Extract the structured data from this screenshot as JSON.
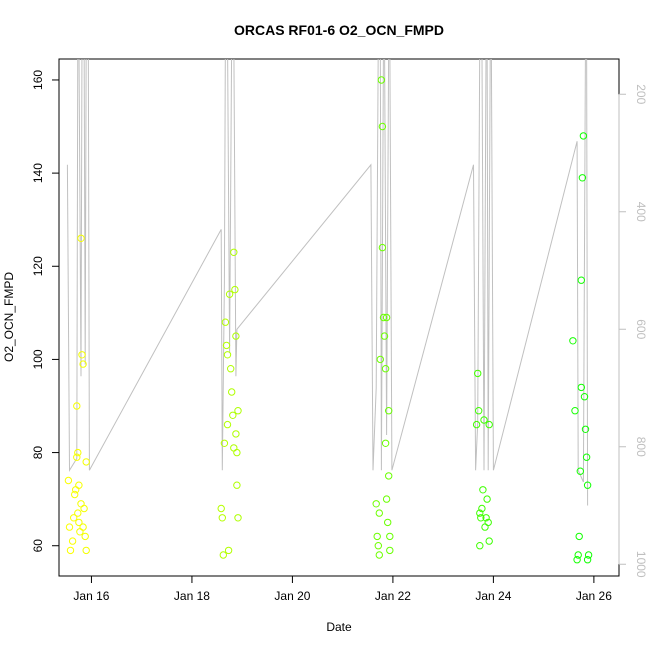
{
  "chart_data": {
    "type": "scatter",
    "title": "ORCAS RF01-6 O2_OCN_FMPD",
    "xlabel": "Date",
    "ylabel": "O2_OCN_FMPD",
    "xlim": [
      "2016-01-15T08:30",
      "2016-01-26T12:00"
    ],
    "ylim": [
      53.5,
      164.5
    ],
    "x_ticks": [
      {
        "x": "2016-01-16",
        "label": "Jan 16"
      },
      {
        "x": "2016-01-18",
        "label": "Jan 18"
      },
      {
        "x": "2016-01-20",
        "label": "Jan 20"
      },
      {
        "x": "2016-01-22",
        "label": "Jan 22"
      },
      {
        "x": "2016-01-24",
        "label": "Jan 24"
      },
      {
        "x": "2016-01-26",
        "label": "Jan 26"
      }
    ],
    "y_ticks": [
      60,
      80,
      100,
      120,
      140,
      160
    ],
    "y2_ticks": [
      200,
      400,
      600,
      800,
      1000
    ],
    "y2_ylim": [
      1020,
      140
    ],
    "grid": false,
    "colors": {
      "points_start": "#ffff00",
      "points_end": "#00ff00",
      "line": "#c0c0c0",
      "right_axis": "#bfbfbf"
    },
    "series": [
      {
        "values": [
          {
            "x": "2016-01-15T13:00",
            "y": 74
          },
          {
            "x": "2016-01-15T13:30",
            "y": 64
          },
          {
            "x": "2016-01-15T14:00",
            "y": 59
          },
          {
            "x": "2016-01-15T15:00",
            "y": 61
          },
          {
            "x": "2016-01-15T15:30",
            "y": 66
          },
          {
            "x": "2016-01-15T16:00",
            "y": 71
          },
          {
            "x": "2016-01-15T16:30",
            "y": 72
          },
          {
            "x": "2016-01-15T17:00",
            "y": 90
          },
          {
            "x": "2016-01-15T17:00",
            "y": 79
          },
          {
            "x": "2016-01-15T17:30",
            "y": 80
          },
          {
            "x": "2016-01-15T18:00",
            "y": 73
          },
          {
            "x": "2016-01-15T18:00",
            "y": 65
          },
          {
            "x": "2016-01-15T18:30",
            "y": 63
          },
          {
            "x": "2016-01-15T19:00",
            "y": 126
          },
          {
            "x": "2016-01-15T19:30",
            "y": 101
          },
          {
            "x": "2016-01-15T20:00",
            "y": 99
          },
          {
            "x": "2016-01-15T20:00",
            "y": 64
          },
          {
            "x": "2016-01-15T20:30",
            "y": 68
          },
          {
            "x": "2016-01-15T21:00",
            "y": 62
          },
          {
            "x": "2016-01-15T21:30",
            "y": 59
          },
          {
            "x": "2016-01-15T21:30",
            "y": 78
          },
          {
            "x": "2016-01-15T17:30",
            "y": 67
          },
          {
            "x": "2016-01-15T19:00",
            "y": 69
          },
          {
            "x": "2016-01-18T14:00",
            "y": 68
          },
          {
            "x": "2016-01-18T14:30",
            "y": 66
          },
          {
            "x": "2016-01-18T15:00",
            "y": 58
          },
          {
            "x": "2016-01-18T15:30",
            "y": 82
          },
          {
            "x": "2016-01-18T16:00",
            "y": 108
          },
          {
            "x": "2016-01-18T16:30",
            "y": 103
          },
          {
            "x": "2016-01-18T17:00",
            "y": 101
          },
          {
            "x": "2016-01-18T17:00",
            "y": 86
          },
          {
            "x": "2016-01-18T17:30",
            "y": 59
          },
          {
            "x": "2016-01-18T18:00",
            "y": 114
          },
          {
            "x": "2016-01-18T18:30",
            "y": 98
          },
          {
            "x": "2016-01-18T19:00",
            "y": 93
          },
          {
            "x": "2016-01-18T19:30",
            "y": 88
          },
          {
            "x": "2016-01-18T20:00",
            "y": 81
          },
          {
            "x": "2016-01-18T20:00",
            "y": 123
          },
          {
            "x": "2016-01-18T20:30",
            "y": 115
          },
          {
            "x": "2016-01-18T21:00",
            "y": 105
          },
          {
            "x": "2016-01-18T21:00",
            "y": 84
          },
          {
            "x": "2016-01-18T21:30",
            "y": 80
          },
          {
            "x": "2016-01-18T21:30",
            "y": 73
          },
          {
            "x": "2016-01-18T22:00",
            "y": 66
          },
          {
            "x": "2016-01-18T22:00",
            "y": 89
          },
          {
            "x": "2016-01-21T16:00",
            "y": 69
          },
          {
            "x": "2016-01-21T16:30",
            "y": 62
          },
          {
            "x": "2016-01-21T17:00",
            "y": 60
          },
          {
            "x": "2016-01-21T17:30",
            "y": 67
          },
          {
            "x": "2016-01-21T18:00",
            "y": 100
          },
          {
            "x": "2016-01-21T18:30",
            "y": 160
          },
          {
            "x": "2016-01-21T19:00",
            "y": 150
          },
          {
            "x": "2016-01-21T19:00",
            "y": 124
          },
          {
            "x": "2016-01-21T19:30",
            "y": 109
          },
          {
            "x": "2016-01-21T20:00",
            "y": 105
          },
          {
            "x": "2016-01-21T20:30",
            "y": 98
          },
          {
            "x": "2016-01-21T20:30",
            "y": 82
          },
          {
            "x": "2016-01-21T21:00",
            "y": 70
          },
          {
            "x": "2016-01-21T21:30",
            "y": 65
          },
          {
            "x": "2016-01-21T22:00",
            "y": 75
          },
          {
            "x": "2016-01-21T22:00",
            "y": 89
          },
          {
            "x": "2016-01-21T22:30",
            "y": 62
          },
          {
            "x": "2016-01-21T22:30",
            "y": 59
          },
          {
            "x": "2016-01-21T17:30",
            "y": 58
          },
          {
            "x": "2016-01-21T21:00",
            "y": 109
          },
          {
            "x": "2016-01-23T16:00",
            "y": 86
          },
          {
            "x": "2016-01-23T16:30",
            "y": 97
          },
          {
            "x": "2016-01-23T17:00",
            "y": 89
          },
          {
            "x": "2016-01-23T17:30",
            "y": 60
          },
          {
            "x": "2016-01-23T18:00",
            "y": 66
          },
          {
            "x": "2016-01-23T18:30",
            "y": 68
          },
          {
            "x": "2016-01-23T19:00",
            "y": 72
          },
          {
            "x": "2016-01-23T19:30",
            "y": 87
          },
          {
            "x": "2016-01-23T20:00",
            "y": 64
          },
          {
            "x": "2016-01-23T20:30",
            "y": 66
          },
          {
            "x": "2016-01-23T21:00",
            "y": 70
          },
          {
            "x": "2016-01-23T21:30",
            "y": 65
          },
          {
            "x": "2016-01-23T22:00",
            "y": 61
          },
          {
            "x": "2016-01-23T22:00",
            "y": 86
          },
          {
            "x": "2016-01-23T17:30",
            "y": 67
          },
          {
            "x": "2016-01-25T14:00",
            "y": 104
          },
          {
            "x": "2016-01-25T15:00",
            "y": 89
          },
          {
            "x": "2016-01-25T16:00",
            "y": 57
          },
          {
            "x": "2016-01-25T16:30",
            "y": 58
          },
          {
            "x": "2016-01-25T17:00",
            "y": 62
          },
          {
            "x": "2016-01-25T17:30",
            "y": 76
          },
          {
            "x": "2016-01-25T18:00",
            "y": 94
          },
          {
            "x": "2016-01-25T18:00",
            "y": 117
          },
          {
            "x": "2016-01-25T18:30",
            "y": 139
          },
          {
            "x": "2016-01-25T19:00",
            "y": 148
          },
          {
            "x": "2016-01-25T19:30",
            "y": 92
          },
          {
            "x": "2016-01-25T20:00",
            "y": 85
          },
          {
            "x": "2016-01-25T20:30",
            "y": 79
          },
          {
            "x": "2016-01-25T21:00",
            "y": 73
          },
          {
            "x": "2016-01-25T21:30",
            "y": 58
          },
          {
            "x": "2016-01-25T21:00",
            "y": 57
          }
        ]
      },
      {
        "type": "line",
        "axis": "right",
        "values": [
          {
            "x": "2016-01-15T12:30",
            "y2": 320
          },
          {
            "x": "2016-01-15T13:30",
            "y2": 840
          },
          {
            "x": "2016-01-15T17:00",
            "y2": 820
          },
          {
            "x": "2016-01-15T17:30",
            "y2": 100
          },
          {
            "x": "2016-01-15T18:00",
            "y2": 100
          },
          {
            "x": "2016-01-15T19:00",
            "y2": 680
          },
          {
            "x": "2016-01-15T19:30",
            "y2": 100
          },
          {
            "x": "2016-01-15T20:30",
            "y2": 100
          },
          {
            "x": "2016-01-15T21:00",
            "y2": 660
          },
          {
            "x": "2016-01-15T21:30",
            "y2": 100
          },
          {
            "x": "2016-01-15T22:30",
            "y2": 100
          },
          {
            "x": "2016-01-15T23:00",
            "y2": 840
          },
          {
            "x": "2016-01-18T14:00",
            "y2": 430
          },
          {
            "x": "2016-01-18T14:30",
            "y2": 840
          },
          {
            "x": "2016-01-18T15:30",
            "y2": 520
          },
          {
            "x": "2016-01-18T16:00",
            "y2": 100
          },
          {
            "x": "2016-01-18T17:00",
            "y2": 100
          },
          {
            "x": "2016-01-18T18:00",
            "y2": 640
          },
          {
            "x": "2016-01-18T19:00",
            "y2": 100
          },
          {
            "x": "2016-01-18T20:00",
            "y2": 100
          },
          {
            "x": "2016-01-18T21:00",
            "y2": 680
          },
          {
            "x": "2016-01-18T21:30",
            "y2": 600
          },
          {
            "x": "2016-01-21T13:30",
            "y2": 320
          },
          {
            "x": "2016-01-21T14:30",
            "y2": 840
          },
          {
            "x": "2016-01-21T16:00",
            "y2": 700
          },
          {
            "x": "2016-01-21T17:00",
            "y2": 100
          },
          {
            "x": "2016-01-21T18:00",
            "y2": 100
          },
          {
            "x": "2016-01-21T18:30",
            "y2": 840
          },
          {
            "x": "2016-01-21T19:30",
            "y2": 100
          },
          {
            "x": "2016-01-21T20:00",
            "y2": 100
          },
          {
            "x": "2016-01-21T21:00",
            "y2": 780
          },
          {
            "x": "2016-01-21T22:00",
            "y2": 100
          },
          {
            "x": "2016-01-21T22:30",
            "y2": 100
          },
          {
            "x": "2016-01-21T23:30",
            "y2": 840
          },
          {
            "x": "2016-01-23T14:30",
            "y2": 320
          },
          {
            "x": "2016-01-23T15:30",
            "y2": 840
          },
          {
            "x": "2016-01-23T16:30",
            "y2": 760
          },
          {
            "x": "2016-01-23T17:30",
            "y2": 100
          },
          {
            "x": "2016-01-23T18:30",
            "y2": 100
          },
          {
            "x": "2016-01-23T19:30",
            "y2": 840
          },
          {
            "x": "2016-01-23T20:30",
            "y2": 100
          },
          {
            "x": "2016-01-23T21:00",
            "y2": 100
          },
          {
            "x": "2016-01-23T21:30",
            "y2": 840
          },
          {
            "x": "2016-01-23T22:30",
            "y2": 100
          },
          {
            "x": "2016-01-23T23:00",
            "y2": 100
          },
          {
            "x": "2016-01-24T00:00",
            "y2": 840
          },
          {
            "x": "2016-01-25T16:00",
            "y2": 280
          },
          {
            "x": "2016-01-25T16:30",
            "y2": 840
          },
          {
            "x": "2016-01-25T19:00",
            "y2": 860
          },
          {
            "x": "2016-01-25T20:00",
            "y2": 100
          },
          {
            "x": "2016-01-25T20:30",
            "y2": 100
          },
          {
            "x": "2016-01-25T21:00",
            "y2": 900
          }
        ]
      }
    ]
  }
}
